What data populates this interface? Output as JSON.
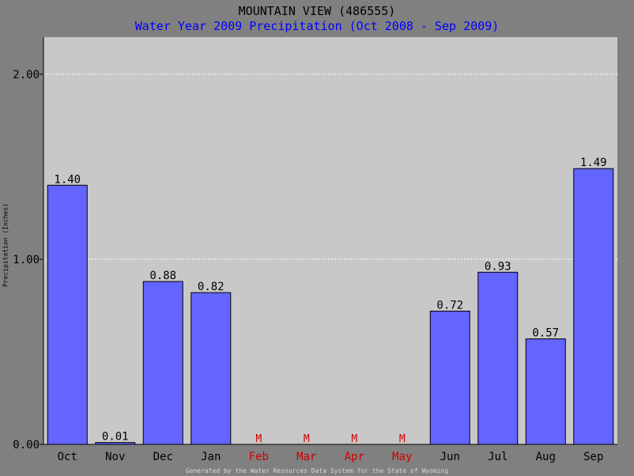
{
  "title": "MOUNTAIN VIEW (486555)",
  "subtitle": "Water Year 2009 Precipitation (Oct 2008 - Sep 2009)",
  "footer": "Generated by the Water Resources Data System for the State of Wyoming",
  "colors": {
    "background": "#808080",
    "plot_area": "#c8c8c8",
    "bar_fill": "#6464ff",
    "subtitle": "#0000ff",
    "missing": "#cc0000",
    "footer": "#d8d8d8"
  },
  "chart_data": {
    "type": "bar",
    "title": "MOUNTAIN VIEW (486555)",
    "subtitle": "Water Year 2009 Precipitation (Oct 2008 - Sep 2009)",
    "xlabel": "",
    "ylabel": "Precipitation (Inches)",
    "ylim": [
      0,
      2.2
    ],
    "yticks": [
      0,
      1,
      2
    ],
    "ytick_labels": [
      "0.00",
      "1.00",
      "2.00"
    ],
    "grid": true,
    "categories": [
      "Oct",
      "Nov",
      "Dec",
      "Jan",
      "Feb",
      "Mar",
      "Apr",
      "May",
      "Jun",
      "Jul",
      "Aug",
      "Sep"
    ],
    "values": [
      1.4,
      0.01,
      0.88,
      0.82,
      null,
      null,
      null,
      null,
      0.72,
      0.93,
      0.57,
      1.49
    ],
    "value_labels": [
      "1.40",
      "0.01",
      "0.88",
      "0.82",
      "M",
      "M",
      "M",
      "M",
      "0.72",
      "0.93",
      "0.57",
      "1.49"
    ],
    "missing_label": "M"
  }
}
